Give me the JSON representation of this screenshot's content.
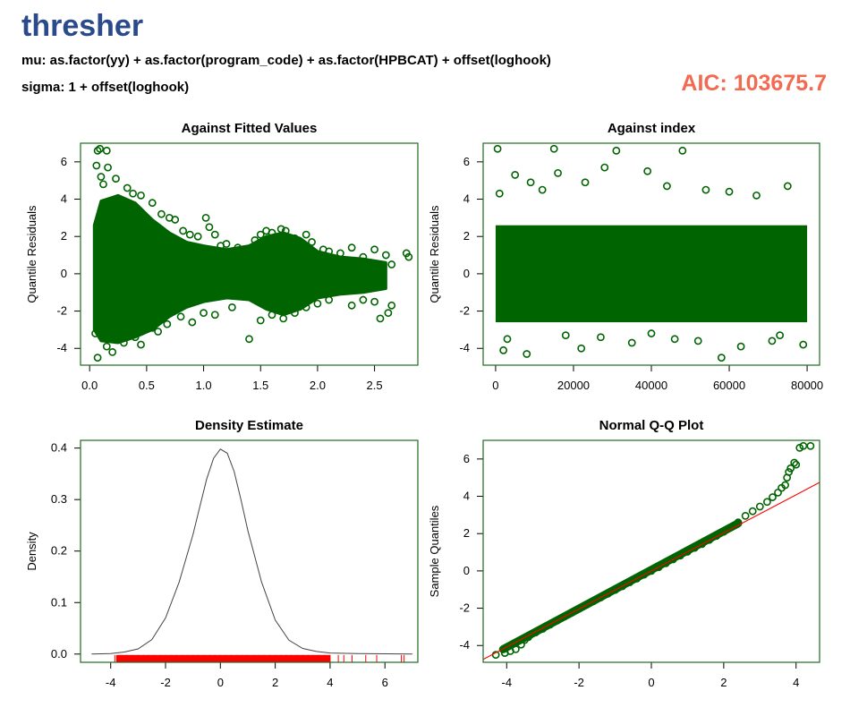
{
  "header": {
    "title": "thresher",
    "mu_formula": "mu: as.factor(yy) + as.factor(program_code) + as.factor(HPBCAT) + offset(loghook)",
    "sigma_formula": "sigma: 1 + offset(loghook)",
    "aic_text": "AIC: 103675.7"
  },
  "colors": {
    "points": "#006400",
    "rug": "#ff0000",
    "qq_line": "#ff0000",
    "density_line": "#444444",
    "title": "#2b4a8b",
    "aic": "#f26a4f"
  },
  "chart_data": [
    {
      "type": "scatter",
      "title": "Against Fitted Values",
      "xlabel": "",
      "ylabel": "Quantile Residuals",
      "xlim": [
        -0.08,
        2.88
      ],
      "ylim": [
        -4.9,
        7.0
      ],
      "x_ticks": [
        "0.0",
        "0.5",
        "1.0",
        "1.5",
        "2.0",
        "2.5"
      ],
      "y_ticks": [
        "-4",
        "-2",
        "0",
        "2",
        "4",
        "6"
      ],
      "series": [
        {
          "points": [
            [
              0.07,
              6.6
            ],
            [
              0.09,
              6.7
            ],
            [
              0.15,
              6.6
            ],
            [
              0.06,
              5.8
            ],
            [
              0.16,
              5.7
            ],
            [
              0.23,
              5.1
            ],
            [
              0.1,
              5.2
            ],
            [
              0.12,
              4.8
            ],
            [
              0.33,
              4.6
            ],
            [
              0.38,
              4.3
            ],
            [
              0.45,
              4.2
            ],
            [
              0.55,
              3.8
            ],
            [
              0.63,
              3.2
            ],
            [
              0.7,
              3.0
            ],
            [
              0.75,
              2.9
            ],
            [
              0.82,
              2.3
            ],
            [
              0.88,
              2.1
            ],
            [
              0.95,
              2.0
            ],
            [
              1.02,
              3.0
            ],
            [
              1.05,
              2.5
            ],
            [
              1.1,
              2.1
            ],
            [
              1.15,
              1.5
            ],
            [
              1.2,
              1.6
            ],
            [
              1.3,
              1.4
            ],
            [
              1.45,
              1.8
            ],
            [
              1.5,
              2.1
            ],
            [
              1.55,
              2.3
            ],
            [
              1.6,
              2.2
            ],
            [
              1.68,
              2.4
            ],
            [
              1.72,
              2.3
            ],
            [
              1.8,
              1.9
            ],
            [
              1.9,
              2.1
            ],
            [
              1.95,
              1.7
            ],
            [
              2.05,
              1.3
            ],
            [
              2.1,
              1.2
            ],
            [
              2.2,
              1.1
            ],
            [
              2.3,
              1.4
            ],
            [
              2.4,
              0.9
            ],
            [
              2.5,
              1.3
            ],
            [
              2.6,
              1.0
            ],
            [
              2.65,
              0.5
            ],
            [
              2.78,
              1.1
            ],
            [
              2.8,
              0.9
            ],
            [
              0.05,
              -3.2
            ],
            [
              0.07,
              -4.5
            ],
            [
              0.15,
              -3.9
            ],
            [
              0.2,
              -4.2
            ],
            [
              0.3,
              -3.7
            ],
            [
              0.4,
              -3.4
            ],
            [
              0.45,
              -3.8
            ],
            [
              0.55,
              -2.9
            ],
            [
              0.6,
              -3.1
            ],
            [
              0.68,
              -2.7
            ],
            [
              0.8,
              -2.3
            ],
            [
              0.9,
              -2.6
            ],
            [
              1.0,
              -2.1
            ],
            [
              1.1,
              -2.2
            ],
            [
              1.25,
              -1.8
            ],
            [
              1.4,
              -3.5
            ],
            [
              1.5,
              -2.5
            ],
            [
              1.6,
              -2.2
            ],
            [
              1.7,
              -2.4
            ],
            [
              1.8,
              -2.1
            ],
            [
              1.9,
              -1.8
            ],
            [
              2.0,
              -1.6
            ],
            [
              2.1,
              -1.4
            ],
            [
              2.3,
              -1.7
            ],
            [
              2.4,
              -1.4
            ],
            [
              2.5,
              -1.5
            ],
            [
              2.55,
              -2.4
            ],
            [
              2.62,
              -2.1
            ],
            [
              2.65,
              -1.7
            ],
            [
              0.2,
              0.0
            ],
            [
              0.3,
              0.5
            ],
            [
              0.4,
              -0.5
            ],
            [
              0.5,
              0.8
            ],
            [
              0.6,
              -0.3
            ],
            [
              0.7,
              0.2
            ],
            [
              0.9,
              -0.4
            ],
            [
              1.2,
              0.3
            ],
            [
              1.6,
              0.0
            ],
            [
              1.75,
              0.4
            ],
            [
              2.0,
              0.1
            ],
            [
              2.2,
              -0.2
            ]
          ]
        }
      ]
    },
    {
      "type": "scatter",
      "title": "Against  index",
      "xlabel": "",
      "ylabel": "Quantile Residuals",
      "xlim": [
        -3200,
        83200
      ],
      "ylim": [
        -4.9,
        7.0
      ],
      "x_ticks": [
        "0",
        "20000",
        "40000",
        "60000",
        "80000"
      ],
      "y_ticks": [
        "-4",
        "-2",
        "0",
        "2",
        "4",
        "6"
      ],
      "series": [
        {
          "points": [
            [
              500,
              6.7
            ],
            [
              15000,
              6.7
            ],
            [
              31000,
              6.6
            ],
            [
              48000,
              6.6
            ],
            [
              28000,
              5.7
            ],
            [
              39000,
              5.5
            ],
            [
              5000,
              5.3
            ],
            [
              16000,
              5.4
            ],
            [
              9000,
              4.9
            ],
            [
              23000,
              4.9
            ],
            [
              44000,
              4.7
            ],
            [
              54000,
              4.5
            ],
            [
              75000,
              4.7
            ],
            [
              67000,
              4.2
            ],
            [
              1000,
              4.3
            ],
            [
              60000,
              4.4
            ],
            [
              12000,
              4.5
            ],
            [
              2000,
              -4.1
            ],
            [
              8000,
              -4.3
            ],
            [
              22000,
              -4.0
            ],
            [
              35000,
              -3.7
            ],
            [
              46000,
              -3.5
            ],
            [
              58000,
              -4.5
            ],
            [
              71000,
              -3.6
            ],
            [
              79000,
              -3.8
            ],
            [
              3000,
              -3.5
            ],
            [
              27000,
              -3.4
            ],
            [
              63000,
              -3.9
            ],
            [
              52000,
              -3.6
            ],
            [
              40000,
              -3.2
            ],
            [
              18000,
              -3.3
            ],
            [
              73000,
              -3.3
            ]
          ]
        }
      ]
    },
    {
      "type": "line",
      "title": "Density Estimate",
      "xlabel": "",
      "ylabel": "Density",
      "xlim": [
        -5.1,
        7.2
      ],
      "ylim": [
        -0.016,
        0.415
      ],
      "x_ticks": [
        "-4",
        "-2",
        "0",
        "2",
        "4",
        "6"
      ],
      "y_ticks": [
        "0.0",
        "0.1",
        "0.2",
        "0.3",
        "0.4"
      ],
      "x": [
        -4.7,
        -4.0,
        -3.5,
        -3.0,
        -2.5,
        -2.0,
        -1.5,
        -1.0,
        -0.75,
        -0.5,
        -0.25,
        0.0,
        0.25,
        0.5,
        0.75,
        1.0,
        1.5,
        2.0,
        2.5,
        3.0,
        3.5,
        4.0,
        5.0,
        6.0,
        7.0
      ],
      "y": [
        0.0,
        0.001,
        0.004,
        0.01,
        0.028,
        0.07,
        0.14,
        0.232,
        0.286,
        0.34,
        0.38,
        0.398,
        0.39,
        0.355,
        0.3,
        0.24,
        0.14,
        0.066,
        0.027,
        0.011,
        0.005,
        0.002,
        0.001,
        0.0005,
        0.0
      ],
      "rug": [
        -3.85,
        -3.6,
        -3.4,
        -3.2,
        -3.0,
        -2.8,
        -2.6,
        -2.4,
        -2.2,
        -2.0,
        -1.8,
        -1.6,
        -1.4,
        -1.2,
        -1.0,
        -0.8,
        -0.6,
        -0.4,
        -0.2,
        0.0,
        0.2,
        0.4,
        0.6,
        0.8,
        1.0,
        1.2,
        1.4,
        1.6,
        1.8,
        2.0,
        2.2,
        2.4,
        2.6,
        2.8,
        3.0,
        3.2,
        3.4,
        3.6,
        3.8,
        4.0,
        4.3,
        4.5,
        4.8,
        5.3,
        5.7,
        6.6,
        6.7
      ]
    },
    {
      "type": "scatter",
      "title": "Normal Q-Q Plot",
      "xlabel": "",
      "ylabel": "Sample Quantiles",
      "xlim": [
        -4.65,
        4.65
      ],
      "ylim": [
        -4.9,
        7.0
      ],
      "x_ticks": [
        "-4",
        "-2",
        "0",
        "2",
        "4"
      ],
      "y_ticks": [
        "-4",
        "-2",
        "0",
        "2",
        "4",
        "6"
      ],
      "reference_line": {
        "intercept": 0.0,
        "slope": 1.02
      },
      "series": [
        {
          "points": [
            [
              -4.3,
              -4.5
            ],
            [
              -4.05,
              -4.4
            ],
            [
              -3.9,
              -4.3
            ],
            [
              -3.75,
              -4.2
            ],
            [
              -3.6,
              -3.95
            ],
            [
              -3.5,
              -3.7
            ],
            [
              -3.4,
              -3.55
            ],
            [
              -3.2,
              -3.3
            ],
            [
              -3.0,
              -3.1
            ],
            [
              -2.8,
              -2.88
            ],
            [
              -2.6,
              -2.66
            ],
            [
              -2.4,
              -2.45
            ],
            [
              -2.2,
              -2.24
            ],
            [
              -2.0,
              -2.03
            ],
            [
              -1.8,
              -1.82
            ],
            [
              -1.6,
              -1.62
            ],
            [
              -1.4,
              -1.42
            ],
            [
              -1.2,
              -1.22
            ],
            [
              -1.0,
              -1.02
            ],
            [
              -0.8,
              -0.82
            ],
            [
              -0.6,
              -0.61
            ],
            [
              -0.4,
              -0.41
            ],
            [
              -0.2,
              -0.2
            ],
            [
              0.0,
              0.0
            ],
            [
              0.2,
              0.2
            ],
            [
              0.4,
              0.41
            ],
            [
              0.6,
              0.62
            ],
            [
              0.8,
              0.82
            ],
            [
              1.0,
              1.03
            ],
            [
              1.2,
              1.24
            ],
            [
              1.4,
              1.44
            ],
            [
              1.6,
              1.66
            ],
            [
              1.8,
              1.88
            ],
            [
              2.0,
              2.1
            ],
            [
              2.2,
              2.34
            ],
            [
              2.4,
              2.6
            ],
            [
              2.6,
              2.95
            ],
            [
              2.8,
              3.2
            ],
            [
              3.0,
              3.45
            ],
            [
              3.2,
              3.7
            ],
            [
              3.35,
              3.95
            ],
            [
              3.5,
              4.2
            ],
            [
              3.6,
              4.45
            ],
            [
              3.7,
              4.6
            ],
            [
              3.75,
              5.0
            ],
            [
              3.8,
              5.3
            ],
            [
              3.85,
              5.5
            ],
            [
              3.95,
              5.8
            ],
            [
              4.0,
              5.7
            ],
            [
              4.1,
              6.6
            ],
            [
              4.2,
              6.7
            ],
            [
              4.4,
              6.7
            ]
          ]
        }
      ]
    }
  ]
}
